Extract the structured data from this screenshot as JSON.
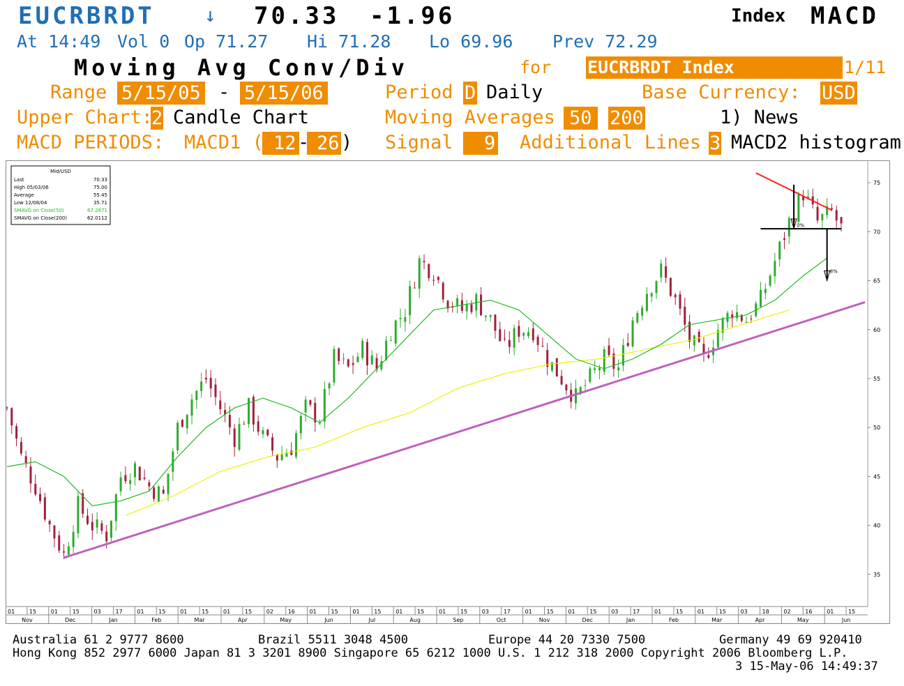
{
  "header": {
    "ticker": "EUCRBRDT",
    "arrow": "↓",
    "last_price": "70.33",
    "change": "-1.96",
    "index_label": "Index",
    "function_code": "MACD",
    "stats_line": {
      "time": "At 14:49",
      "vol": "Vol 0",
      "op": "Op 71.27",
      "hi": "Hi 71.28",
      "lo": "Lo 69.96",
      "prev": "Prev 72.29"
    },
    "title": "Moving Avg Conv/Div",
    "for_label": "for",
    "security": "EUCRBRDT Index",
    "page": "1/11"
  },
  "settings": {
    "range_label": "Range",
    "range_start": "5/15/05",
    "range_dash": "-",
    "range_end": "5/15/06",
    "period_label": "Period",
    "period_code": "D",
    "period_value": "Daily",
    "base_currency_label": "Base Currency:",
    "base_currency": "USD",
    "upper_chart_label": "Upper Chart:",
    "upper_chart_code": "2",
    "upper_chart_value": "Candle Chart",
    "moving_averages_label": "Moving Averages",
    "ma1": "50",
    "ma2": "200",
    "news": "1) News",
    "macd_periods_label": "MACD PERIODS:",
    "macd1_label": "MACD1 (",
    "macd1_fast": "12",
    "macd1_dash": "-",
    "macd1_slow": "26",
    "macd1_close": ")",
    "signal_label": "Signal",
    "signal_value": "9",
    "additional_lines_label": "Additional Lines",
    "additional_lines_code": "3",
    "additional_lines_value": "MACD2 histogram"
  },
  "colors": {
    "orange": "#f08c00",
    "blue": "#1f6fb5",
    "up_candle": "#2faa2f",
    "down_candle": "#a0203c",
    "ma50": "#22bb22",
    "ma200": "#f0f000",
    "trendline": "#c060c0",
    "resistance": "#ff2020"
  },
  "legend": {
    "title": "Mid/USD",
    "rows": [
      {
        "label": "Last",
        "value": "70.33"
      },
      {
        "label": "High  05/03/06",
        "value": "75.00"
      },
      {
        "label": "Average",
        "value": "55.45"
      },
      {
        "label": "Low  12/08/04",
        "value": "35.71"
      },
      {
        "label": "SMAVG on Close(50)",
        "value": "67.2871"
      },
      {
        "label": "SMAVG on Close(200)",
        "value": "62.0112"
      }
    ]
  },
  "chart_data": {
    "type": "candlestick",
    "title": "",
    "ylim": [
      32,
      77
    ],
    "y_ticks": [
      35,
      40,
      45,
      50,
      55,
      60,
      65,
      70,
      75
    ],
    "x_day_ticks": [
      "01",
      "15",
      "01",
      "15",
      "03",
      "17",
      "01",
      "15",
      "01",
      "15",
      "01",
      "15",
      "02",
      "16",
      "01",
      "15",
      "01",
      "15",
      "01",
      "15",
      "01",
      "15",
      "03",
      "17",
      "01",
      "15",
      "01",
      "15",
      "03",
      "17",
      "01",
      "15",
      "01",
      "15",
      "03",
      "18",
      "02",
      "16",
      "01",
      "15"
    ],
    "x_months": [
      "Nov",
      "Dec",
      "Jan",
      "Feb",
      "Mar",
      "Apr",
      "May",
      "Jun",
      "Jul",
      "Aug",
      "Sep",
      "Oct",
      "Nov",
      "Dec",
      "Jan",
      "Feb",
      "Mar",
      "Apr",
      "May",
      "Jun"
    ],
    "close_series": [
      {
        "x": 0,
        "y": 52
      },
      {
        "x": 3,
        "y": 47
      },
      {
        "x": 6,
        "y": 44
      },
      {
        "x": 9,
        "y": 40
      },
      {
        "x": 12,
        "y": 37
      },
      {
        "x": 15,
        "y": 42
      },
      {
        "x": 18,
        "y": 40
      },
      {
        "x": 21,
        "y": 39
      },
      {
        "x": 24,
        "y": 45
      },
      {
        "x": 27,
        "y": 46
      },
      {
        "x": 30,
        "y": 44
      },
      {
        "x": 33,
        "y": 43
      },
      {
        "x": 36,
        "y": 50
      },
      {
        "x": 39,
        "y": 53
      },
      {
        "x": 42,
        "y": 55
      },
      {
        "x": 45,
        "y": 52
      },
      {
        "x": 48,
        "y": 49
      },
      {
        "x": 51,
        "y": 52
      },
      {
        "x": 54,
        "y": 49
      },
      {
        "x": 57,
        "y": 47
      },
      {
        "x": 60,
        "y": 48
      },
      {
        "x": 63,
        "y": 52
      },
      {
        "x": 66,
        "y": 51
      },
      {
        "x": 69,
        "y": 57
      },
      {
        "x": 72,
        "y": 56
      },
      {
        "x": 75,
        "y": 58
      },
      {
        "x": 78,
        "y": 56
      },
      {
        "x": 81,
        "y": 60
      },
      {
        "x": 84,
        "y": 62
      },
      {
        "x": 87,
        "y": 67
      },
      {
        "x": 90,
        "y": 66
      },
      {
        "x": 93,
        "y": 63
      },
      {
        "x": 96,
        "y": 62
      },
      {
        "x": 99,
        "y": 63
      },
      {
        "x": 102,
        "y": 61
      },
      {
        "x": 105,
        "y": 58
      },
      {
        "x": 108,
        "y": 60
      },
      {
        "x": 111,
        "y": 60
      },
      {
        "x": 114,
        "y": 57
      },
      {
        "x": 117,
        "y": 55
      },
      {
        "x": 120,
        "y": 53
      },
      {
        "x": 123,
        "y": 55
      },
      {
        "x": 126,
        "y": 57
      },
      {
        "x": 129,
        "y": 56
      },
      {
        "x": 132,
        "y": 61
      },
      {
        "x": 135,
        "y": 64
      },
      {
        "x": 138,
        "y": 66
      },
      {
        "x": 141,
        "y": 63
      },
      {
        "x": 144,
        "y": 59
      },
      {
        "x": 147,
        "y": 57
      },
      {
        "x": 150,
        "y": 60
      },
      {
        "x": 153,
        "y": 62
      },
      {
        "x": 156,
        "y": 61
      },
      {
        "x": 159,
        "y": 63
      },
      {
        "x": 162,
        "y": 67
      },
      {
        "x": 165,
        "y": 71
      },
      {
        "x": 168,
        "y": 74
      },
      {
        "x": 171,
        "y": 71
      },
      {
        "x": 174,
        "y": 72
      },
      {
        "x": 176,
        "y": 70.33
      }
    ],
    "sma50": [
      {
        "x": 0,
        "y": 46
      },
      {
        "x": 6,
        "y": 46.5
      },
      {
        "x": 12,
        "y": 45
      },
      {
        "x": 18,
        "y": 42
      },
      {
        "x": 24,
        "y": 42.5
      },
      {
        "x": 30,
        "y": 43.5
      },
      {
        "x": 36,
        "y": 47
      },
      {
        "x": 42,
        "y": 50
      },
      {
        "x": 48,
        "y": 52
      },
      {
        "x": 54,
        "y": 53
      },
      {
        "x": 60,
        "y": 52
      },
      {
        "x": 66,
        "y": 50.5
      },
      {
        "x": 72,
        "y": 53
      },
      {
        "x": 78,
        "y": 56
      },
      {
        "x": 84,
        "y": 59
      },
      {
        "x": 90,
        "y": 62
      },
      {
        "x": 96,
        "y": 62.5
      },
      {
        "x": 102,
        "y": 63
      },
      {
        "x": 108,
        "y": 62
      },
      {
        "x": 114,
        "y": 59.5
      },
      {
        "x": 120,
        "y": 57
      },
      {
        "x": 126,
        "y": 56
      },
      {
        "x": 132,
        "y": 57
      },
      {
        "x": 138,
        "y": 58.5
      },
      {
        "x": 144,
        "y": 60.5
      },
      {
        "x": 150,
        "y": 61
      },
      {
        "x": 156,
        "y": 61.5
      },
      {
        "x": 162,
        "y": 63
      },
      {
        "x": 168,
        "y": 65.5
      },
      {
        "x": 173,
        "y": 67.3
      }
    ],
    "sma200": [
      {
        "x": 25,
        "y": 41
      },
      {
        "x": 35,
        "y": 43
      },
      {
        "x": 45,
        "y": 45.5
      },
      {
        "x": 55,
        "y": 47
      },
      {
        "x": 65,
        "y": 48
      },
      {
        "x": 75,
        "y": 50
      },
      {
        "x": 85,
        "y": 51.5
      },
      {
        "x": 95,
        "y": 54
      },
      {
        "x": 105,
        "y": 55.5
      },
      {
        "x": 115,
        "y": 56.5
      },
      {
        "x": 125,
        "y": 57
      },
      {
        "x": 135,
        "y": 58
      },
      {
        "x": 145,
        "y": 59
      },
      {
        "x": 155,
        "y": 60.5
      },
      {
        "x": 165,
        "y": 62
      }
    ],
    "trendline": {
      "from": {
        "x": 12,
        "y": 36.7
      },
      "to": {
        "x": 181,
        "y": 62.8
      }
    },
    "resistance_line": {
      "from": {
        "x": 158,
        "y": 76
      },
      "to": {
        "x": 174,
        "y": 72.2
      }
    },
    "support_line": {
      "from": {
        "x": 159,
        "y": 70.3
      },
      "to": {
        "x": 176,
        "y": 70.3
      }
    },
    "annotations": [
      {
        "text": "0%",
        "x": 166,
        "y": 70.5
      },
      {
        "text": "8%",
        "x": 173,
        "y": 65.8
      }
    ],
    "n_days": 182
  },
  "footer": {
    "line1_au": "Australia 61 2 9777 8600",
    "line1_br": "Brazil 5511 3048 4500",
    "line1_eu": "Europe 44 20 7330 7500",
    "line1_de": "Germany 49 69 920410",
    "line2": "Hong Kong 852 2977 6000 Japan 81 3 3201 8900 Singapore 65 6212 1000 U.S. 1 212 318 2000 Copyright 2006 Bloomberg L.P.",
    "line3": "3 15-May-06 14:49:37"
  }
}
